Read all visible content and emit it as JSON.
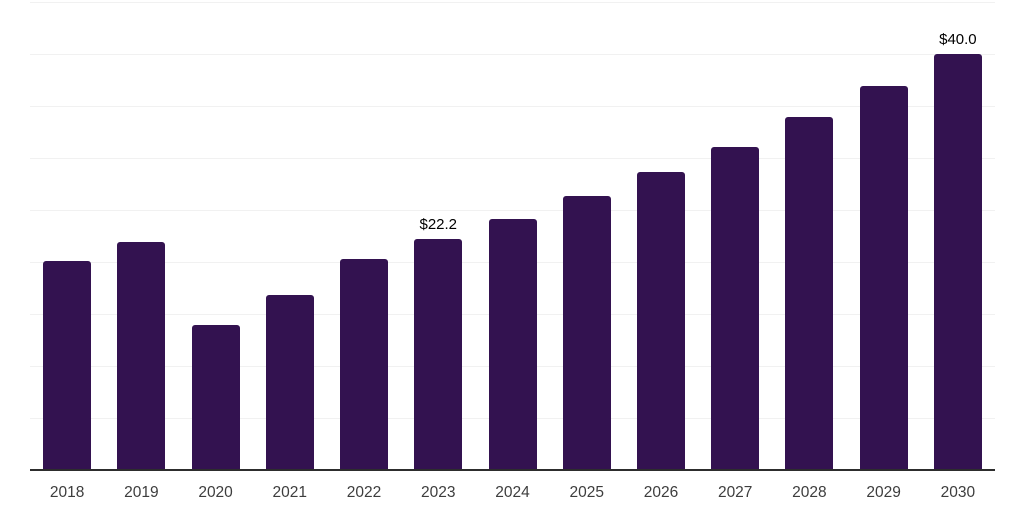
{
  "chart_data": {
    "type": "bar",
    "title": "",
    "xlabel": "",
    "ylabel": "",
    "categories": [
      "2018",
      "2019",
      "2020",
      "2021",
      "2022",
      "2023",
      "2024",
      "2025",
      "2026",
      "2027",
      "2028",
      "2029",
      "2030"
    ],
    "values": [
      20.1,
      21.9,
      13.9,
      16.8,
      20.3,
      22.2,
      24.1,
      26.3,
      28.7,
      31.1,
      33.9,
      36.9,
      40.0
    ],
    "data_labels": [
      {
        "category": "2023",
        "text": "$22.2"
      },
      {
        "category": "2030",
        "text": "$40.0"
      }
    ],
    "ylim": [
      0,
      45
    ],
    "gridline_step": 5,
    "grid": "horizontal-only",
    "legend": "none",
    "y_axis_tick_labels": "none",
    "colors": {
      "bar": "#331250",
      "gridline": "#f1f1f1",
      "axis_line": "#2d2d2d",
      "tick_label": "#3d3d3d",
      "data_label": "#000000",
      "background": "#ffffff"
    }
  }
}
